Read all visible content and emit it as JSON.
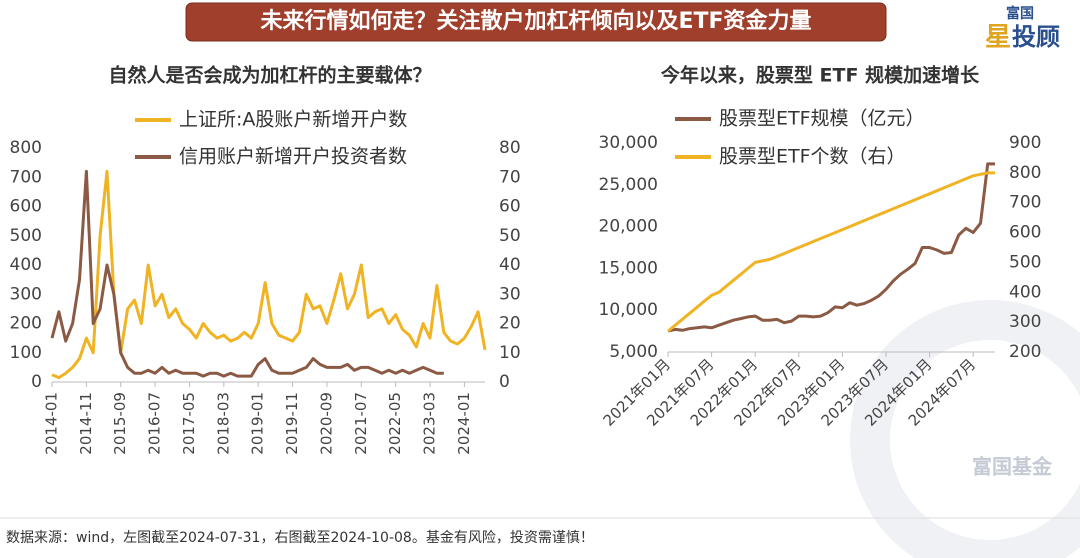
{
  "header": {
    "title": "未来行情如何走？关注散户加杠杆倾向以及ETF资金力量",
    "logo_top": "富国",
    "logo_star": "星",
    "logo_main": "投顾"
  },
  "watermark": "富国基金",
  "footer": {
    "source": "数据来源：wind，左图截至2024-07-31，右图截至2024-10-08。基金有风险，投资需谨慎！"
  },
  "chart_data": [
    {
      "type": "line",
      "title": "自然人是否会成为加杠杆的主要载体？",
      "categories": [
        "2014-01",
        null,
        null,
        null,
        null,
        "2014-11",
        null,
        null,
        null,
        null,
        "2015-09",
        null,
        null,
        null,
        null,
        "2016-07",
        null,
        null,
        null,
        null,
        "2017-05",
        null,
        null,
        null,
        null,
        "2018-03",
        null,
        null,
        null,
        null,
        "2019-01",
        null,
        null,
        null,
        null,
        "2019-11",
        null,
        null,
        null,
        null,
        "2020-09",
        null,
        null,
        null,
        null,
        "2021-07",
        null,
        null,
        null,
        null,
        "2022-05",
        null,
        null,
        null,
        null,
        "2023-03",
        null,
        null,
        null,
        null,
        "2024-01",
        null,
        null,
        null
      ],
      "series": [
        {
          "name": "上证所:A股账户新增开户数",
          "color": "#f0b323",
          "axis": "y",
          "values": [
            25,
            15,
            30,
            50,
            80,
            150,
            100,
            500,
            720,
            300,
            100,
            250,
            280,
            200,
            400,
            260,
            300,
            220,
            250,
            200,
            180,
            150,
            200,
            170,
            150,
            160,
            140,
            150,
            170,
            150,
            200,
            340,
            200,
            160,
            150,
            140,
            170,
            300,
            250,
            260,
            200,
            280,
            370,
            250,
            300,
            400,
            220,
            240,
            250,
            200,
            230,
            180,
            160,
            120,
            200,
            150,
            330,
            170,
            140,
            130,
            150,
            190,
            240,
            110
          ]
        },
        {
          "name": "信用账户新增开户投资者数",
          "color": "#8b5a44",
          "axis": "y2",
          "values": [
            15,
            24,
            14,
            20,
            35,
            72,
            20,
            25,
            40,
            30,
            10,
            5,
            3,
            3,
            4,
            3,
            5,
            3,
            4,
            3,
            3,
            3,
            2,
            3,
            3,
            2,
            3,
            2,
            2,
            2,
            6,
            8,
            4,
            3,
            3,
            3,
            4,
            5,
            8,
            6,
            5,
            5,
            5,
            6,
            4,
            5,
            5,
            4,
            3,
            4,
            3,
            4,
            3,
            4,
            5,
            4,
            3,
            3,
            null,
            null,
            null,
            null,
            null,
            null
          ]
        }
      ],
      "ylim": [
        0,
        800
      ],
      "yticks": [
        0,
        100,
        200,
        300,
        400,
        500,
        600,
        700,
        800
      ],
      "y2lim": [
        0,
        80
      ],
      "y2ticks": [
        0,
        10,
        20,
        30,
        40,
        50,
        60,
        70,
        80
      ]
    },
    {
      "type": "line",
      "title": "今年以来，股票型 ETF 规模加速增长",
      "categories": [
        "2021年01月",
        null,
        null,
        null,
        null,
        null,
        "2021年07月",
        null,
        null,
        null,
        null,
        null,
        "2022年01月",
        null,
        null,
        null,
        null,
        null,
        "2022年07月",
        null,
        null,
        null,
        null,
        null,
        "2023年01月",
        null,
        null,
        null,
        null,
        null,
        "2023年07月",
        null,
        null,
        null,
        null,
        null,
        "2024年01月",
        null,
        null,
        null,
        null,
        null,
        "2024年07月",
        null,
        null,
        null
      ],
      "series": [
        {
          "name": "股票型ETF规模（亿元）",
          "color": "#8b5a44",
          "axis": "y",
          "values": [
            7500,
            7700,
            7600,
            7800,
            7900,
            8000,
            7900,
            8200,
            8500,
            8800,
            9000,
            9200,
            9300,
            8800,
            8800,
            8900,
            8500,
            8700,
            9300,
            9300,
            9200,
            9300,
            9700,
            10400,
            10300,
            10900,
            10600,
            10800,
            11200,
            11700,
            12500,
            13500,
            14300,
            14900,
            15600,
            17500,
            17500,
            17200,
            16800,
            16900,
            19000,
            19800,
            19300,
            20400,
            27500,
            27500
          ]
        },
        {
          "name": "股票型ETF个数（右）",
          "color": "#f0b323",
          "axis": "y2",
          "values": [
            270,
            290,
            310,
            330,
            350,
            370,
            390,
            400,
            420,
            440,
            460,
            480,
            500,
            505,
            510,
            520,
            530,
            540,
            550,
            560,
            570,
            580,
            590,
            600,
            610,
            620,
            630,
            640,
            650,
            660,
            670,
            680,
            690,
            700,
            710,
            720,
            730,
            740,
            750,
            760,
            770,
            780,
            790,
            795,
            800,
            800
          ]
        }
      ],
      "ylim": [
        5000,
        30000
      ],
      "yticks": [
        {
          "value": 5000,
          "label": "5,000"
        },
        {
          "value": 10000,
          "label": "10,000"
        },
        {
          "value": 15000,
          "label": "15,000"
        },
        {
          "value": 20000,
          "label": "20,000"
        },
        {
          "value": 25000,
          "label": "25,000"
        },
        {
          "value": 30000,
          "label": "30,000"
        }
      ],
      "y2lim": [
        200,
        900
      ],
      "y2ticks": [
        200,
        300,
        400,
        500,
        600,
        700,
        800,
        900
      ]
    }
  ]
}
